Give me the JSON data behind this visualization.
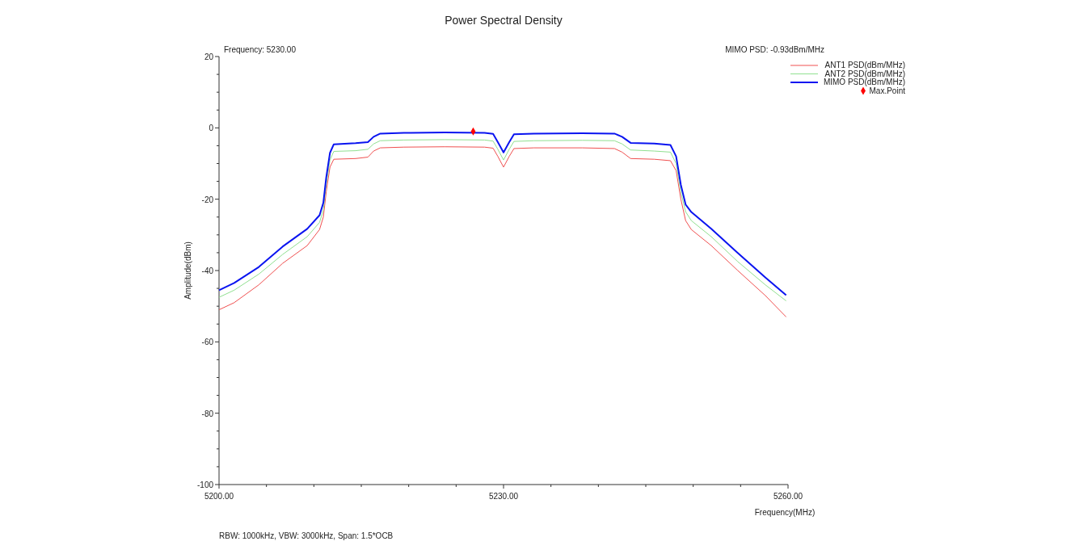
{
  "chart_data": {
    "type": "line",
    "title": "Power Spectral Density",
    "xlabel": "Frequency(MHz)",
    "ylabel": "Amplitude(dBm)",
    "annotations": [
      "Frequency: 5230.00",
      "MIMO PSD: -0.93dBm/MHz",
      "RBW: 1000kHz, VBW: 3000kHz, Span: 1.5*OCB"
    ],
    "x": [
      5200.0,
      5201.6,
      5204.2,
      5206.7,
      5209.3,
      5210.6,
      5211.0,
      5211.3,
      5211.7,
      5212.1,
      5214.4,
      5215.7,
      5216.3,
      5217.0,
      5219.5,
      5223.8,
      5228.0,
      5228.9,
      5229.4,
      5230.0,
      5230.6,
      5231.1,
      5233.2,
      5238.3,
      5241.7,
      5242.5,
      5243.4,
      5245.9,
      5247.6,
      5248.2,
      5248.7,
      5249.2,
      5249.8,
      5251.9,
      5254.7,
      5257.6,
      5259.8
    ],
    "series": [
      {
        "name": "ANT1 PSD(dBm/MHz)",
        "color": "#f05050",
        "values": [
          -51,
          -49,
          -44,
          -38,
          -33,
          -28.5,
          -25,
          -18,
          -11,
          -8.8,
          -8.6,
          -8.2,
          -6.5,
          -5.6,
          -5.4,
          -5.3,
          -5.4,
          -5.7,
          -8,
          -11,
          -8,
          -5.8,
          -5.6,
          -5.6,
          -5.8,
          -6.8,
          -8.6,
          -8.8,
          -9.2,
          -12,
          -20,
          -26,
          -28.5,
          -33,
          -40,
          -47,
          -53
        ]
      },
      {
        "name": "ANT2 PSD(dBm/MHz)",
        "color": "#90e090",
        "values": [
          -47.5,
          -45.5,
          -41,
          -35.5,
          -30.5,
          -26.5,
          -23,
          -16,
          -9,
          -6.6,
          -6.4,
          -6.0,
          -4.5,
          -3.6,
          -3.4,
          -3.3,
          -3.4,
          -3.7,
          -6,
          -9,
          -6,
          -3.8,
          -3.6,
          -3.5,
          -3.6,
          -4.5,
          -6.2,
          -6.5,
          -6.8,
          -10,
          -18,
          -23.5,
          -26,
          -30.5,
          -37.5,
          -44,
          -48.5
        ]
      },
      {
        "name": "MIMO PSD(dBm/MHz)",
        "color": "#0a14f0",
        "values": [
          -45.5,
          -43.5,
          -39,
          -33.3,
          -28.3,
          -24.5,
          -21,
          -14,
          -7,
          -4.6,
          -4.3,
          -4.0,
          -2.5,
          -1.6,
          -1.4,
          -1.3,
          -1.4,
          -1.7,
          -4,
          -6.9,
          -4,
          -1.8,
          -1.6,
          -1.5,
          -1.6,
          -2.5,
          -4.2,
          -4.4,
          -4.8,
          -8,
          -16,
          -21.5,
          -23.6,
          -28.3,
          -35.1,
          -41.9,
          -46.9
        ]
      },
      {
        "name": "Max.Point",
        "type": "scatter",
        "marker": "diamond",
        "color": "#ff0000",
        "x": [
          5226.8
        ],
        "values": [
          -1
        ]
      }
    ],
    "xlim": [
      5200,
      5260
    ],
    "xticks": [
      {
        "value": 5200,
        "label": "5200.00"
      },
      {
        "value": 5205,
        "label": null
      },
      {
        "value": 5210,
        "label": null
      },
      {
        "value": 5215,
        "label": null
      },
      {
        "value": 5220,
        "label": null
      },
      {
        "value": 5225,
        "label": null
      },
      {
        "value": 5230,
        "label": "5230.00"
      },
      {
        "value": 5235,
        "label": null
      },
      {
        "value": 5240,
        "label": null
      },
      {
        "value": 5245,
        "label": null
      },
      {
        "value": 5250,
        "label": null
      },
      {
        "value": 5255,
        "label": null
      },
      {
        "value": 5260,
        "label": "5260.00"
      }
    ],
    "ylim": [
      -100,
      20
    ],
    "yticks": [
      -100,
      {
        "value": -95,
        "label": null
      },
      {
        "value": -90,
        "label": null
      },
      {
        "value": -85,
        "label": null
      },
      -80,
      {
        "value": -75,
        "label": null
      },
      {
        "value": -70,
        "label": null
      },
      {
        "value": -65,
        "label": null
      },
      -60,
      {
        "value": -55,
        "label": null
      },
      {
        "value": -50,
        "label": null
      },
      {
        "value": -45,
        "label": null
      },
      -40,
      {
        "value": -35,
        "label": null
      },
      {
        "value": -30,
        "label": null
      },
      {
        "value": -25,
        "label": null
      },
      -20,
      {
        "value": -15,
        "label": null
      },
      {
        "value": -10,
        "label": null
      },
      {
        "value": -5,
        "label": null
      },
      0,
      {
        "value": 5,
        "label": null
      },
      {
        "value": 10,
        "label": null
      },
      {
        "value": 15,
        "label": null
      },
      20
    ],
    "legend": "top right"
  }
}
